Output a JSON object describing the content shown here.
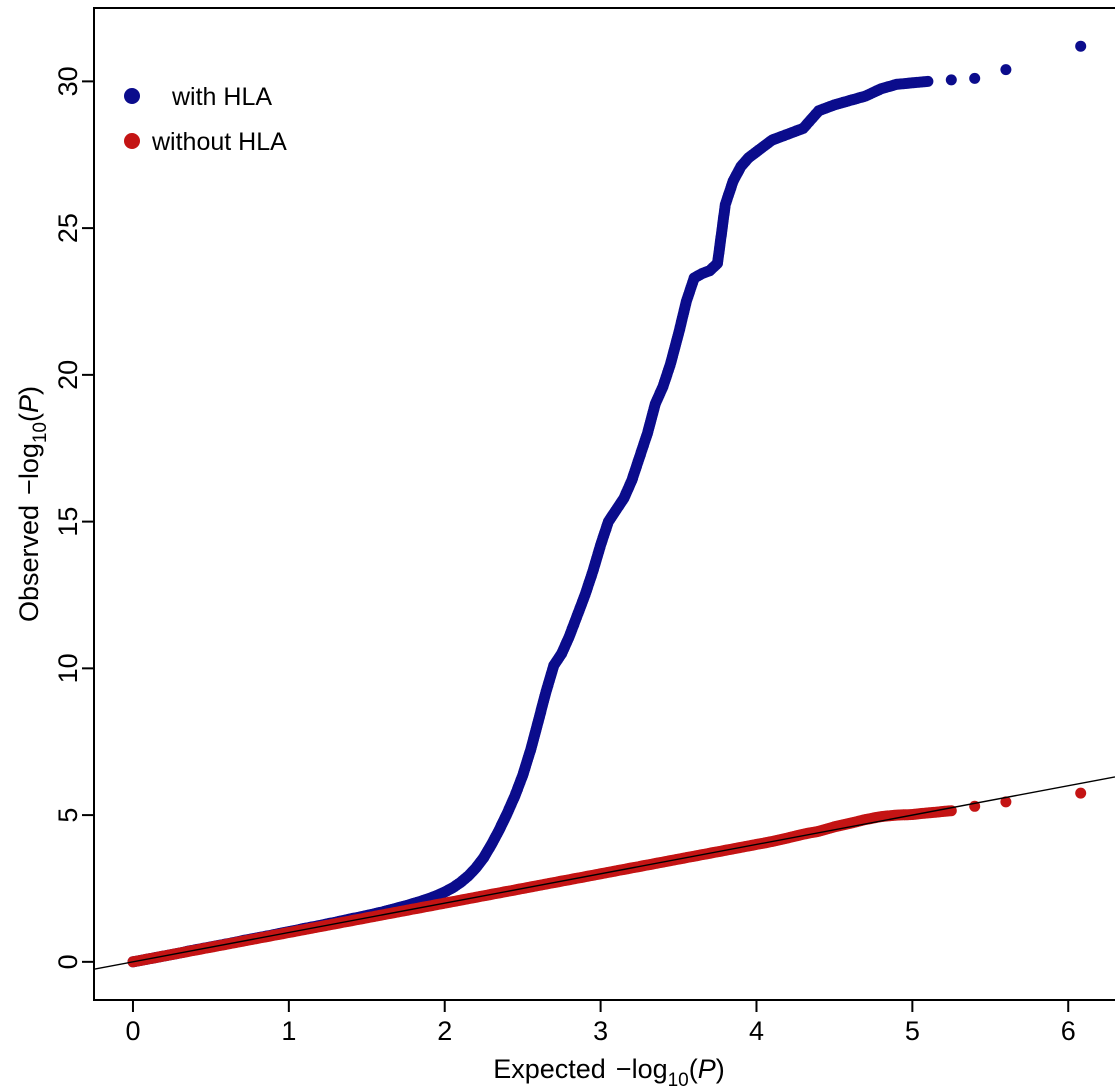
{
  "chart_data": {
    "type": "scatter",
    "title": "",
    "xlabel": "Expected",
    "ylabel": "Observed",
    "axis_expr": {
      "minus": "−",
      "log": "log",
      "sub": "10",
      "p": "P",
      "open": "(",
      "close": ")"
    },
    "xlim": [
      -0.25,
      6.3
    ],
    "ylim": [
      -1.3,
      32.5
    ],
    "xticks": [
      0,
      1,
      2,
      3,
      4,
      5,
      6
    ],
    "yticks": [
      0,
      5,
      10,
      15,
      20,
      25,
      30
    ],
    "grid": false,
    "legend_position": "top-left",
    "reference_line": {
      "type": "y=x",
      "color": "#000000"
    },
    "series": [
      {
        "name": "with HLA",
        "color": "#0b0c8c",
        "points": [
          [
            0.0,
            0.0
          ],
          [
            0.05,
            0.05
          ],
          [
            0.1,
            0.1
          ],
          [
            0.15,
            0.15
          ],
          [
            0.2,
            0.2
          ],
          [
            0.25,
            0.25
          ],
          [
            0.3,
            0.3
          ],
          [
            0.35,
            0.36
          ],
          [
            0.4,
            0.41
          ],
          [
            0.45,
            0.46
          ],
          [
            0.5,
            0.51
          ],
          [
            0.55,
            0.56
          ],
          [
            0.6,
            0.61
          ],
          [
            0.65,
            0.66
          ],
          [
            0.7,
            0.72
          ],
          [
            0.75,
            0.77
          ],
          [
            0.8,
            0.82
          ],
          [
            0.85,
            0.87
          ],
          [
            0.9,
            0.92
          ],
          [
            0.95,
            0.98
          ],
          [
            1.0,
            1.03
          ],
          [
            1.05,
            1.08
          ],
          [
            1.1,
            1.14
          ],
          [
            1.15,
            1.19
          ],
          [
            1.2,
            1.24
          ],
          [
            1.25,
            1.3
          ],
          [
            1.3,
            1.35
          ],
          [
            1.35,
            1.41
          ],
          [
            1.4,
            1.47
          ],
          [
            1.45,
            1.52
          ],
          [
            1.5,
            1.58
          ],
          [
            1.55,
            1.64
          ],
          [
            1.6,
            1.7
          ],
          [
            1.65,
            1.77
          ],
          [
            1.7,
            1.84
          ],
          [
            1.75,
            1.91
          ],
          [
            1.8,
            1.99
          ],
          [
            1.85,
            2.07
          ],
          [
            1.9,
            2.16
          ],
          [
            1.95,
            2.26
          ],
          [
            2.0,
            2.38
          ],
          [
            2.05,
            2.52
          ],
          [
            2.1,
            2.7
          ],
          [
            2.15,
            2.92
          ],
          [
            2.2,
            3.2
          ],
          [
            2.25,
            3.55
          ],
          [
            2.3,
            4.0
          ],
          [
            2.35,
            4.5
          ],
          [
            2.4,
            5.05
          ],
          [
            2.45,
            5.65
          ],
          [
            2.5,
            6.35
          ],
          [
            2.55,
            7.2
          ],
          [
            2.6,
            8.2
          ],
          [
            2.65,
            9.2
          ],
          [
            2.7,
            10.1
          ],
          [
            2.75,
            10.5
          ],
          [
            2.8,
            11.1
          ],
          [
            2.85,
            11.8
          ],
          [
            2.9,
            12.5
          ],
          [
            2.95,
            13.3
          ],
          [
            3.0,
            14.2
          ],
          [
            3.05,
            15.0
          ],
          [
            3.1,
            15.4
          ],
          [
            3.15,
            15.8
          ],
          [
            3.2,
            16.4
          ],
          [
            3.25,
            17.2
          ],
          [
            3.3,
            18.0
          ],
          [
            3.35,
            19.0
          ],
          [
            3.4,
            19.6
          ],
          [
            3.45,
            20.4
          ],
          [
            3.5,
            21.4
          ],
          [
            3.55,
            22.5
          ],
          [
            3.6,
            23.3
          ],
          [
            3.65,
            23.45
          ],
          [
            3.7,
            23.55
          ],
          [
            3.75,
            23.8
          ],
          [
            3.78,
            25.0
          ],
          [
            3.8,
            25.8
          ],
          [
            3.85,
            26.6
          ],
          [
            3.9,
            27.1
          ],
          [
            3.95,
            27.4
          ],
          [
            4.0,
            27.6
          ],
          [
            4.05,
            27.8
          ],
          [
            4.1,
            28.0
          ],
          [
            4.15,
            28.1
          ],
          [
            4.2,
            28.2
          ],
          [
            4.3,
            28.4
          ],
          [
            4.4,
            29.0
          ],
          [
            4.5,
            29.2
          ],
          [
            4.6,
            29.35
          ],
          [
            4.7,
            29.5
          ],
          [
            4.8,
            29.75
          ],
          [
            4.9,
            29.9
          ],
          [
            5.0,
            29.95
          ],
          [
            5.1,
            30.0
          ],
          [
            5.25,
            30.05
          ],
          [
            5.4,
            30.1
          ],
          [
            5.6,
            30.4
          ],
          [
            6.08,
            31.2
          ]
        ]
      },
      {
        "name": "without HLA",
        "color": "#c41414",
        "points": [
          [
            0.0,
            0.0
          ],
          [
            0.1,
            0.1
          ],
          [
            0.2,
            0.2
          ],
          [
            0.3,
            0.3
          ],
          [
            0.4,
            0.4
          ],
          [
            0.5,
            0.5
          ],
          [
            0.6,
            0.6
          ],
          [
            0.7,
            0.7
          ],
          [
            0.8,
            0.8
          ],
          [
            0.9,
            0.9
          ],
          [
            1.0,
            1.0
          ],
          [
            1.1,
            1.1
          ],
          [
            1.2,
            1.2
          ],
          [
            1.3,
            1.3
          ],
          [
            1.4,
            1.4
          ],
          [
            1.5,
            1.5
          ],
          [
            1.6,
            1.6
          ],
          [
            1.7,
            1.7
          ],
          [
            1.8,
            1.8
          ],
          [
            1.9,
            1.9
          ],
          [
            2.0,
            2.0
          ],
          [
            2.1,
            2.1
          ],
          [
            2.2,
            2.2
          ],
          [
            2.3,
            2.3
          ],
          [
            2.4,
            2.4
          ],
          [
            2.5,
            2.5
          ],
          [
            2.6,
            2.6
          ],
          [
            2.7,
            2.7
          ],
          [
            2.8,
            2.8
          ],
          [
            2.9,
            2.9
          ],
          [
            3.0,
            3.0
          ],
          [
            3.1,
            3.1
          ],
          [
            3.2,
            3.2
          ],
          [
            3.3,
            3.3
          ],
          [
            3.4,
            3.4
          ],
          [
            3.5,
            3.5
          ],
          [
            3.6,
            3.6
          ],
          [
            3.7,
            3.7
          ],
          [
            3.8,
            3.8
          ],
          [
            3.9,
            3.9
          ],
          [
            4.0,
            4.0
          ],
          [
            4.1,
            4.1
          ],
          [
            4.2,
            4.22
          ],
          [
            4.3,
            4.35
          ],
          [
            4.4,
            4.45
          ],
          [
            4.5,
            4.6
          ],
          [
            4.6,
            4.72
          ],
          [
            4.7,
            4.85
          ],
          [
            4.8,
            4.95
          ],
          [
            4.9,
            5.0
          ],
          [
            5.0,
            5.02
          ],
          [
            5.05,
            5.05
          ],
          [
            5.15,
            5.1
          ],
          [
            5.25,
            5.15
          ],
          [
            5.4,
            5.3
          ],
          [
            5.6,
            5.45
          ],
          [
            6.08,
            5.75
          ]
        ]
      }
    ]
  }
}
